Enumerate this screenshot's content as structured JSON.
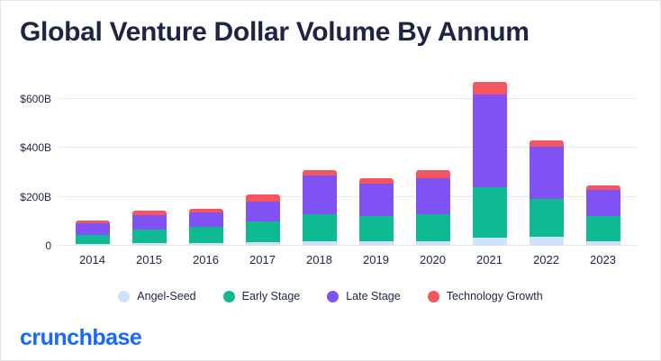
{
  "title": "Global Venture Dollar Volume By Annum",
  "footer": {
    "logo_text": "crunchbase"
  },
  "colors": {
    "title_text": "#1b2642",
    "axis_text": "#1b2642",
    "gridline": "#e7e7f0",
    "logo_blue": "#146aff",
    "background": "#ffffff"
  },
  "chart_data": {
    "type": "bar",
    "stacked": true,
    "title": "Global Venture Dollar Volume By Annum",
    "xlabel": "",
    "ylabel": "",
    "units": "USD billions",
    "categories": [
      "2014",
      "2015",
      "2016",
      "2017",
      "2018",
      "2019",
      "2020",
      "2021",
      "2022",
      "2023"
    ],
    "series": [
      {
        "name": "Angel-Seed",
        "color": "#cfe2f8",
        "values": [
          8,
          10,
          12,
          15,
          20,
          20,
          20,
          33,
          37,
          20
        ]
      },
      {
        "name": "Early Stage",
        "color": "#0fba92",
        "values": [
          38,
          55,
          67,
          85,
          110,
          100,
          108,
          205,
          155,
          100
        ]
      },
      {
        "name": "Late Stage",
        "color": "#8152f3",
        "values": [
          45,
          60,
          56,
          80,
          158,
          135,
          150,
          380,
          212,
          110
        ]
      },
      {
        "name": "Technology Growth",
        "color": "#f4555f",
        "values": [
          13,
          17,
          18,
          30,
          22,
          22,
          30,
          52,
          26,
          18
        ]
      }
    ],
    "totals": [
      104,
      142,
      153,
      210,
      310,
      277,
      308,
      670,
      430,
      248
    ],
    "y_ticks": [
      {
        "value": 600,
        "label": "$600B"
      },
      {
        "value": 400,
        "label": "$400B"
      },
      {
        "value": 200,
        "label": "$200B"
      },
      {
        "value": 0,
        "label": "0"
      }
    ],
    "ylim": [
      0,
      700
    ],
    "grid": true,
    "legend_position": "bottom"
  }
}
